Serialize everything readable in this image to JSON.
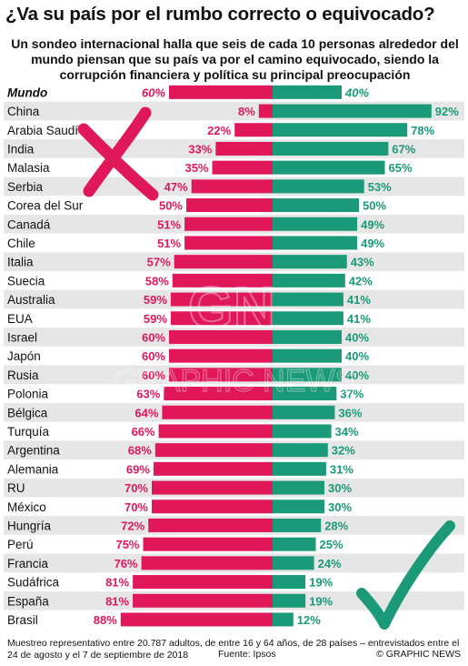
{
  "header": {
    "title": "¿Va su país por el rumbo correcto o equivocado?",
    "subtitle": "Un sondeo internacional halla que seis de cada 10 personas alrededor del mundo piensan que su país va por el camino equivocado, siendo la corrupción financiera y política su principal preocupación"
  },
  "watermark": {
    "logo": "GN",
    "text": "GRAPHIC NEWS"
  },
  "colors": {
    "wrong": "#e0185a",
    "right": "#1a9a78",
    "wrong_text": "#e0185a",
    "right_text": "#1a9a78",
    "row_band": "#e6e6e6",
    "cross": "#e0185a",
    "check": "#1a9a78"
  },
  "icons": {
    "wrong_marker": "cross-icon",
    "right_marker": "check-icon"
  },
  "chart_data": {
    "type": "bar",
    "orientation": "horizontal-diverging",
    "categories": [
      "Mundo",
      "China",
      "Arabia Saudí",
      "India",
      "Malasia",
      "Serbia",
      "Corea del Sur",
      "Canadá",
      "Chile",
      "Italia",
      "Suecia",
      "Australia",
      "EUA",
      "Israel",
      "Japón",
      "Rusia",
      "Polonia",
      "Bélgica",
      "Turquía",
      "Argentina",
      "Alemania",
      "RU",
      "México",
      "Hungría",
      "Perú",
      "Francia",
      "Sudáfrica",
      "España",
      "Brasil"
    ],
    "series": [
      {
        "key": "wrong",
        "values": [
          60,
          8,
          22,
          33,
          35,
          47,
          50,
          51,
          51,
          57,
          58,
          59,
          59,
          60,
          60,
          60,
          63,
          64,
          66,
          68,
          69,
          70,
          70,
          72,
          75,
          76,
          81,
          81,
          88
        ]
      },
      {
        "key": "right",
        "values": [
          40,
          92,
          78,
          67,
          65,
          53,
          50,
          49,
          49,
          43,
          42,
          41,
          41,
          40,
          40,
          40,
          37,
          36,
          34,
          32,
          31,
          30,
          30,
          28,
          25,
          24,
          19,
          19,
          12
        ]
      }
    ],
    "value_suffix": "%",
    "highlight_category": "Mundo"
  },
  "footer": {
    "note": "Muestreo representativo entre 20.787 adultos, de entre 16 y 64 años, de 28 países – entrevistados entre el 24 de agosto y el 7 de septiembre de 2018",
    "source": "Fuente: Ipsos",
    "credit": "© GRAPHIC NEWS"
  }
}
